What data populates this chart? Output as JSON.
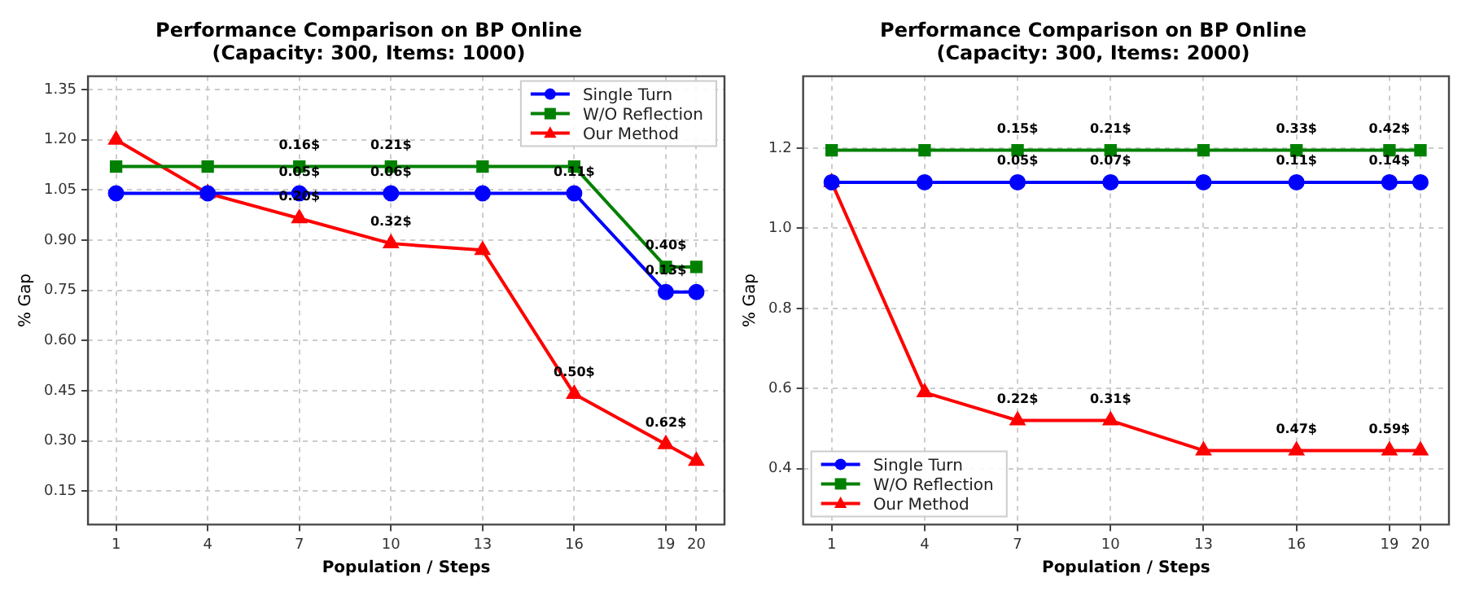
{
  "chart_data": [
    {
      "type": "line",
      "title": "Performance Comparison on BP Online",
      "subtitle": "(Capacity: 300, Items: 1000)",
      "xlabel": "Population / Steps",
      "ylabel": "% Gap",
      "x": [
        1,
        4,
        7,
        10,
        13,
        16,
        19,
        20
      ],
      "series": [
        {
          "name": "Single Turn",
          "color": "#0000ff",
          "marker": "circle",
          "values": [
            1.04,
            1.04,
            1.04,
            1.04,
            1.04,
            1.04,
            0.745,
            0.745
          ]
        },
        {
          "name": "W/O Reflection",
          "color": "#008000",
          "marker": "square",
          "values": [
            1.12,
            1.12,
            1.12,
            1.12,
            1.12,
            1.12,
            0.82,
            0.82
          ]
        },
        {
          "name": "Our Method",
          "color": "#ff0000",
          "marker": "triangle",
          "values": [
            1.2,
            1.04,
            0.965,
            0.89,
            0.87,
            0.44,
            0.29,
            0.24
          ]
        }
      ],
      "xlim": [
        0.08,
        20.92
      ],
      "xticks": [
        1,
        4,
        7,
        10,
        13,
        16,
        19,
        20
      ],
      "ylim": [
        0.05,
        1.39
      ],
      "yticks": [
        {
          "value": 0.15,
          "label": "0.15"
        },
        {
          "value": 0.3,
          "label": "0.30"
        },
        {
          "value": 0.45,
          "label": "0.45"
        },
        {
          "value": 0.6,
          "label": "0.60"
        },
        {
          "value": 0.75,
          "label": "0.75"
        },
        {
          "value": 0.9,
          "label": "0.90"
        },
        {
          "value": 1.05,
          "label": "1.05"
        },
        {
          "value": 1.2,
          "label": "1.20"
        },
        {
          "value": 1.35,
          "label": "1.35"
        }
      ],
      "grid": true,
      "legend": "top right",
      "annotations": [
        {
          "text": "0.16$",
          "x": 7,
          "y": 1.12
        },
        {
          "text": "0.21$",
          "x": 10,
          "y": 1.12
        },
        {
          "text": "0.40$",
          "x": 19,
          "y": 0.82
        },
        {
          "text": "0.05$",
          "x": 7,
          "y": 1.04
        },
        {
          "text": "0.06$",
          "x": 10,
          "y": 1.04
        },
        {
          "text": "0.11$",
          "x": 16,
          "y": 1.04
        },
        {
          "text": "0.13$",
          "x": 19,
          "y": 0.745
        },
        {
          "text": "0.20$",
          "x": 7,
          "y": 0.965
        },
        {
          "text": "0.32$",
          "x": 10,
          "y": 0.89
        },
        {
          "text": "0.50$",
          "x": 16,
          "y": 0.44
        },
        {
          "text": "0.62$",
          "x": 19,
          "y": 0.29
        }
      ]
    },
    {
      "type": "line",
      "title": "Performance Comparison on BP Online",
      "subtitle": "(Capacity: 300, Items: 2000)",
      "xlabel": "Population / Steps",
      "ylabel": "% Gap",
      "x": [
        1,
        4,
        7,
        10,
        13,
        16,
        19,
        20
      ],
      "series": [
        {
          "name": "Single Turn",
          "color": "#0000ff",
          "marker": "circle",
          "values": [
            1.115,
            1.115,
            1.115,
            1.115,
            1.115,
            1.115,
            1.115,
            1.115
          ]
        },
        {
          "name": "W/O Reflection",
          "color": "#008000",
          "marker": "square",
          "values": [
            1.195,
            1.195,
            1.195,
            1.195,
            1.195,
            1.195,
            1.195,
            1.195
          ]
        },
        {
          "name": "Our Method",
          "color": "#ff0000",
          "marker": "triangle",
          "values": [
            1.115,
            0.59,
            0.52,
            0.52,
            0.445,
            0.445,
            0.445,
            0.445
          ]
        }
      ],
      "xlim": [
        0.08,
        20.92
      ],
      "xticks": [
        1,
        4,
        7,
        10,
        13,
        16,
        19,
        20
      ],
      "ylim": [
        0.26,
        1.38
      ],
      "yticks": [
        {
          "value": 0.4,
          "label": "0.4"
        },
        {
          "value": 0.6,
          "label": "0.6"
        },
        {
          "value": 0.8,
          "label": "0.8"
        },
        {
          "value": 1.0,
          "label": "1.0"
        },
        {
          "value": 1.2,
          "label": "1.2"
        }
      ],
      "grid": true,
      "legend": "bottom left",
      "annotations": [
        {
          "text": "0.15$",
          "x": 7,
          "y": 1.195
        },
        {
          "text": "0.21$",
          "x": 10,
          "y": 1.195
        },
        {
          "text": "0.33$",
          "x": 16,
          "y": 1.195
        },
        {
          "text": "0.42$",
          "x": 19,
          "y": 1.195
        },
        {
          "text": "0.05$",
          "x": 7,
          "y": 1.115
        },
        {
          "text": "0.07$",
          "x": 10,
          "y": 1.115
        },
        {
          "text": "0.11$",
          "x": 16,
          "y": 1.115
        },
        {
          "text": "0.14$",
          "x": 19,
          "y": 1.115
        },
        {
          "text": "0.22$",
          "x": 7,
          "y": 0.52
        },
        {
          "text": "0.31$",
          "x": 10,
          "y": 0.52
        },
        {
          "text": "0.47$",
          "x": 16,
          "y": 0.445
        },
        {
          "text": "0.59$",
          "x": 19,
          "y": 0.445
        }
      ]
    }
  ]
}
